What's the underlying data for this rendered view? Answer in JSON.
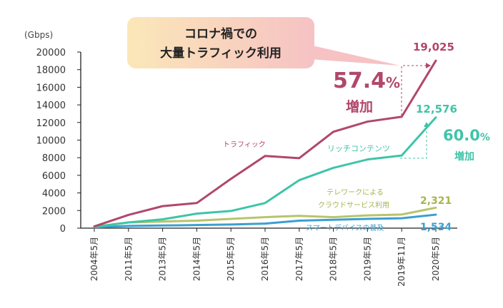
{
  "chart_data": {
    "type": "line",
    "ylabel": "(Gbps)",
    "ylim": [
      0,
      20000
    ],
    "yticks": [
      0,
      2000,
      4000,
      6000,
      8000,
      10000,
      12000,
      14000,
      16000,
      18000,
      20000
    ],
    "categories": [
      "2004年5月",
      "2011年5月",
      "2013年5月",
      "2014年5月",
      "2015年5月",
      "2016年5月",
      "2017年5月",
      "2018年5月",
      "2019年5月",
      "2019年11月",
      "2020年5月"
    ],
    "grid": false,
    "series": [
      {
        "name": "トラフィック",
        "color": "#b1476c",
        "values": [
          200,
          1500,
          2500,
          2850,
          5600,
          8200,
          7950,
          10950,
          12100,
          12650,
          19025
        ]
      },
      {
        "name": "リッチコンテンツ",
        "color": "#3fc4a8",
        "values": [
          150,
          650,
          1000,
          1650,
          1950,
          2850,
          5450,
          6850,
          7800,
          8250,
          12576
        ]
      },
      {
        "name": "テレワークによるクラウドサービス利用",
        "color": "#b7c46a",
        "values": [
          150,
          650,
          750,
          850,
          1050,
          1250,
          1400,
          1250,
          1450,
          1550,
          2321
        ]
      },
      {
        "name": "スマートデバイスの普及",
        "color": "#3a9fd0",
        "values": [
          100,
          250,
          300,
          350,
          420,
          520,
          850,
          950,
          1050,
          1120,
          1534
        ]
      }
    ],
    "end_labels": [
      "19,025",
      "12,576",
      "2,321",
      "1,534"
    ],
    "annotations": {
      "callout_line1": "コロナ禍での",
      "callout_line2": "大量トラフィック利用",
      "increase1_number": "57.4",
      "increase1_pct": "%",
      "increase1_word": "増加",
      "increase2_number": "60.0",
      "increase2_pct": "%",
      "increase2_word": "増加"
    }
  }
}
